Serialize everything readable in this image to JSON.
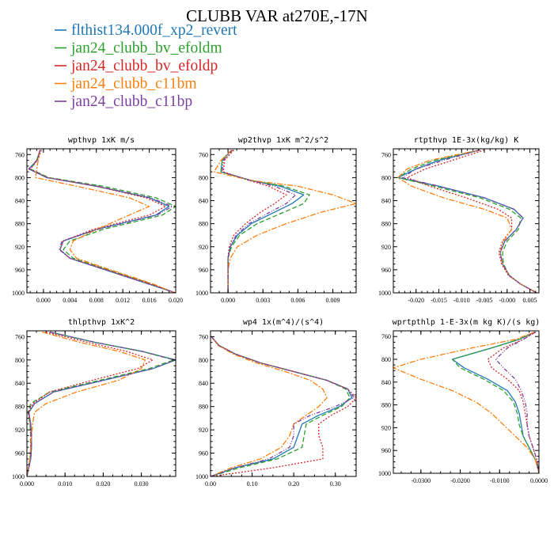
{
  "title": "CLUBB VAR at270E,-17N",
  "colors": {
    "flthist134.000f_xp2_revert": "#1f77b4",
    "jan24_clubb_bv_efoldm": "#2ca02c",
    "jan24_clubb_bv_efoldp": "#d62728",
    "jan24_clubb_c11bm": "#ff7f0e",
    "jan24_clubb_c11bp": "#7b3fa0"
  },
  "legend": [
    {
      "name": "flthist134.000f_xp2_revert",
      "color": "#1f77b4",
      "dash": "solid"
    },
    {
      "name": "jan24_clubb_bv_efoldm",
      "color": "#2ca02c",
      "dash": "dashed"
    },
    {
      "name": "jan24_clubb_bv_efoldp",
      "color": "#d62728",
      "dash": "dotted"
    },
    {
      "name": "jan24_clubb_c11bm",
      "color": "#ff7f0e",
      "dash": "dashdot"
    },
    {
      "name": "jan24_clubb_c11bp",
      "color": "#7b3fa0",
      "dash": "dashdot2"
    }
  ],
  "chart_data": [
    {
      "type": "line",
      "panel_title": "wpthvp 1xK m/s",
      "xlim": [
        -0.0025,
        0.02
      ],
      "ylim": [
        1000,
        750
      ],
      "xticks": [
        "0.000",
        "0.004",
        "0.008",
        "0.012",
        "0.016",
        "0.020"
      ],
      "xtick_values": [
        0,
        0.004,
        0.008,
        0.012,
        0.016,
        0.02
      ],
      "yticks": [
        760,
        800,
        840,
        880,
        920,
        960,
        1000
      ],
      "y": [
        752,
        770,
        785,
        800,
        815,
        835,
        850,
        865,
        890,
        910,
        925,
        940,
        955,
        970,
        985,
        1000
      ],
      "series": [
        {
          "name": "flthist134.000f_xp2_revert",
          "values": [
            -0.0005,
            -0.001,
            -0.0022,
            0.0005,
            0.008,
            0.016,
            0.019,
            0.017,
            0.008,
            0.003,
            0.0025,
            0.004,
            0.008,
            0.012,
            0.016,
            0.02
          ]
        },
        {
          "name": "jan24_clubb_bv_efoldm",
          "values": [
            -0.0005,
            -0.001,
            -0.002,
            0.0008,
            0.009,
            0.017,
            0.02,
            0.018,
            0.009,
            0.004,
            0.003,
            0.0045,
            0.0085,
            0.0125,
            0.0165,
            0.0198
          ]
        },
        {
          "name": "jan24_clubb_bv_efoldp",
          "values": [
            -0.0003,
            -0.0009,
            -0.002,
            0.0006,
            0.008,
            0.0155,
            0.0185,
            0.016,
            0.0075,
            0.003,
            0.0025,
            0.004,
            0.0082,
            0.0122,
            0.0162,
            0.02
          ]
        },
        {
          "name": "jan24_clubb_c11bm",
          "values": [
            -0.0005,
            -0.0008,
            -0.001,
            -0.0012,
            0.005,
            0.013,
            0.016,
            0.013,
            0.008,
            0.0045,
            0.004,
            0.005,
            0.0088,
            0.0128,
            0.0167,
            0.0198
          ]
        },
        {
          "name": "jan24_clubb_c11bp",
          "values": [
            -0.0005,
            -0.001,
            -0.0022,
            0.0005,
            0.0082,
            0.0162,
            0.0195,
            0.0172,
            0.0082,
            0.0028,
            0.0024,
            0.004,
            0.008,
            0.012,
            0.016,
            0.02
          ]
        }
      ]
    },
    {
      "type": "line",
      "panel_title": "wp2thvp 1xK m^2/s^2",
      "xlim": [
        -0.0015,
        0.011
      ],
      "ylim": [
        1000,
        750
      ],
      "xticks": [
        "0.000",
        "0.003",
        "0.006",
        "0.009"
      ],
      "xtick_values": [
        0,
        0.003,
        0.006,
        0.009
      ],
      "yticks": [
        760,
        800,
        840,
        880,
        920,
        960,
        1000
      ],
      "y": [
        752,
        770,
        790,
        805,
        815,
        830,
        845,
        860,
        880,
        900,
        920,
        940,
        960,
        980,
        1000
      ],
      "series": [
        {
          "name": "flthist134.000f_xp2_revert",
          "values": [
            0.0003,
            -0.0005,
            -0.0006,
            0.002,
            0.0045,
            0.0065,
            0.0055,
            0.004,
            0.002,
            0.0008,
            0.0002,
            0,
            0,
            0,
            0
          ]
        },
        {
          "name": "jan24_clubb_bv_efoldm",
          "values": [
            0.0003,
            -0.0005,
            -0.0006,
            0.002,
            0.0048,
            0.007,
            0.0065,
            0.0048,
            0.0025,
            0.001,
            0.0003,
            0,
            0,
            0,
            0
          ]
        },
        {
          "name": "jan24_clubb_bv_efoldp",
          "values": [
            0.0005,
            -0.0003,
            -0.0004,
            0.0018,
            0.0035,
            0.005,
            0.004,
            0.0028,
            0.0015,
            0.0005,
            0.0001,
            0,
            0,
            0,
            0
          ]
        },
        {
          "name": "jan24_clubb_c11bm",
          "values": [
            0.0003,
            -0.0006,
            -0.0012,
            0.002,
            0.006,
            0.009,
            0.011,
            0.008,
            0.005,
            0.0025,
            0.0008,
            0.0002,
            0,
            0,
            0
          ]
        },
        {
          "name": "jan24_clubb_c11bp",
          "values": [
            0.0004,
            -0.0004,
            -0.0005,
            0.0019,
            0.004,
            0.0058,
            0.005,
            0.0036,
            0.0018,
            0.0007,
            0.0002,
            0,
            0,
            0,
            0
          ]
        }
      ]
    },
    {
      "type": "line",
      "panel_title": "rtpthvp 1E-3x(kg/kg) K",
      "xlim": [
        -0.025,
        0.007
      ],
      "ylim": [
        1000,
        750
      ],
      "xticks": [
        "-0.020",
        "-0.015",
        "-0.010",
        "-0.005",
        "-0.000",
        "0.005"
      ],
      "xtick_values": [
        -0.02,
        -0.015,
        -0.01,
        -0.005,
        0,
        0.005
      ],
      "yticks": [
        760,
        800,
        840,
        880,
        920,
        960,
        1000
      ],
      "y": [
        752,
        770,
        785,
        800,
        815,
        835,
        855,
        870,
        890,
        910,
        930,
        950,
        970,
        985,
        1000
      ],
      "series": [
        {
          "name": "flthist134.000f_xp2_revert",
          "values": [
            -0.006,
            -0.015,
            -0.02,
            -0.024,
            -0.015,
            -0.005,
            0.0015,
            0.0035,
            0.002,
            -0.0005,
            -0.0015,
            -0.001,
            0.0005,
            0.003,
            0.0065
          ]
        },
        {
          "name": "jan24_clubb_bv_efoldm",
          "values": [
            -0.006,
            -0.016,
            -0.021,
            -0.024,
            -0.016,
            -0.006,
            0.0005,
            0.003,
            0.0025,
            0,
            -0.001,
            -0.0008,
            0.0005,
            0.003,
            0.0065
          ]
        },
        {
          "name": "jan24_clubb_bv_efoldp",
          "values": [
            -0.005,
            -0.012,
            -0.018,
            -0.022,
            -0.017,
            -0.009,
            -0.002,
            0.001,
            0.001,
            -0.001,
            -0.0018,
            -0.0012,
            0.0003,
            0.003,
            0.0065
          ]
        },
        {
          "name": "jan24_clubb_c11bm",
          "values": [
            -0.006,
            -0.017,
            -0.022,
            -0.024,
            -0.021,
            -0.014,
            -0.005,
            0,
            0.001,
            -0.0008,
            -0.0015,
            -0.001,
            0.0005,
            0.003,
            0.0065
          ]
        },
        {
          "name": "jan24_clubb_c11bp",
          "values": [
            -0.006,
            -0.014,
            -0.02,
            -0.023,
            -0.015,
            -0.005,
            0.0015,
            0.0035,
            0.002,
            -0.0005,
            -0.0015,
            -0.001,
            0.0005,
            0.003,
            0.0065
          ]
        }
      ]
    },
    {
      "type": "line",
      "panel_title": "thlpthvp 1xK^2",
      "xlim": [
        0,
        0.039
      ],
      "ylim": [
        1000,
        750
      ],
      "xticks": [
        "0.000",
        "0.010",
        "0.020",
        "0.030"
      ],
      "xtick_values": [
        0,
        0.01,
        0.02,
        0.03
      ],
      "yticks": [
        760,
        800,
        840,
        880,
        920,
        960,
        1000
      ],
      "y": [
        752,
        770,
        785,
        800,
        815,
        835,
        855,
        875,
        890,
        910,
        930,
        950,
        970,
        985,
        1000
      ],
      "series": [
        {
          "name": "flthist134.000f_xp2_revert",
          "values": [
            0.006,
            0.018,
            0.03,
            0.039,
            0.033,
            0.02,
            0.007,
            0.002,
            0.0005,
            0.001,
            0.0012,
            0.0012,
            0.001,
            0.0005,
            0
          ]
        },
        {
          "name": "jan24_clubb_bv_efoldm",
          "values": [
            0.006,
            0.018,
            0.03,
            0.0385,
            0.032,
            0.019,
            0.006,
            0.001,
            0.0003,
            0.0008,
            0.001,
            0.001,
            0.0008,
            0.0004,
            0
          ]
        },
        {
          "name": "jan24_clubb_bv_efoldp",
          "values": [
            0.005,
            0.016,
            0.026,
            0.033,
            0.029,
            0.017,
            0.006,
            0.0015,
            0.0004,
            0.0009,
            0.001,
            0.001,
            0.0008,
            0.0004,
            0
          ]
        },
        {
          "name": "jan24_clubb_c11bm",
          "values": [
            0.004,
            0.014,
            0.024,
            0.031,
            0.03,
            0.024,
            0.013,
            0.005,
            0.002,
            0.0015,
            0.0012,
            0.001,
            0.0008,
            0.0004,
            0
          ]
        },
        {
          "name": "jan24_clubb_c11bp",
          "values": [
            0.006,
            0.018,
            0.03,
            0.039,
            0.033,
            0.02,
            0.007,
            0.002,
            0.0005,
            0.001,
            0.0012,
            0.0012,
            0.001,
            0.0005,
            0
          ]
        }
      ]
    },
    {
      "type": "line",
      "panel_title": "wp4 1x(m^4)/(s^4)",
      "xlim": [
        0,
        0.35
      ],
      "ylim": [
        1000,
        750
      ],
      "xticks": [
        "0.00",
        "0.10",
        "0.20",
        "0.30"
      ],
      "xtick_values": [
        0,
        0.1,
        0.2,
        0.3
      ],
      "yticks": [
        760,
        800,
        840,
        880,
        920,
        960,
        1000
      ],
      "y": [
        760,
        775,
        790,
        805,
        820,
        835,
        850,
        865,
        880,
        895,
        910,
        930,
        950,
        970,
        985,
        1000
      ],
      "series": [
        {
          "name": "flthist134.000f_xp2_revert",
          "values": [
            0.002,
            0.02,
            0.06,
            0.12,
            0.2,
            0.28,
            0.33,
            0.34,
            0.31,
            0.26,
            0.22,
            0.21,
            0.2,
            0.15,
            0.06,
            0
          ]
        },
        {
          "name": "jan24_clubb_bv_efoldm",
          "values": [
            0.002,
            0.02,
            0.06,
            0.12,
            0.2,
            0.28,
            0.325,
            0.335,
            0.315,
            0.27,
            0.23,
            0.225,
            0.22,
            0.16,
            0.07,
            0
          ]
        },
        {
          "name": "jan24_clubb_bv_efoldp",
          "values": [
            0.002,
            0.02,
            0.06,
            0.12,
            0.2,
            0.28,
            0.33,
            0.35,
            0.33,
            0.29,
            0.26,
            0.26,
            0.27,
            0.27,
            0.15,
            0.002
          ]
        },
        {
          "name": "jan24_clubb_c11bm",
          "values": [
            0.002,
            0.018,
            0.055,
            0.11,
            0.18,
            0.24,
            0.27,
            0.28,
            0.26,
            0.23,
            0.2,
            0.19,
            0.17,
            0.12,
            0.05,
            0
          ]
        },
        {
          "name": "jan24_clubb_c11bp",
          "values": [
            0.002,
            0.02,
            0.06,
            0.12,
            0.2,
            0.28,
            0.33,
            0.345,
            0.3,
            0.24,
            0.2,
            0.2,
            0.19,
            0.14,
            0.06,
            0
          ]
        }
      ]
    },
    {
      "type": "line",
      "panel_title": "wprtpthlp 1-E-3x(m kg K)/(s kg)",
      "xlim": [
        -0.037,
        0.0
      ],
      "ylim": [
        1000,
        750
      ],
      "xticks": [
        "-0.0300",
        "-0.0200",
        "-0.0100",
        "0.0000"
      ],
      "xtick_values": [
        -0.03,
        -0.02,
        -0.01,
        0
      ],
      "yticks": [
        760,
        800,
        840,
        880,
        920,
        960,
        1000
      ],
      "y": [
        752,
        765,
        780,
        800,
        815,
        835,
        855,
        875,
        895,
        915,
        935,
        955,
        975,
        990,
        1000
      ],
      "series": [
        {
          "name": "flthist134.000f_xp2_revert",
          "values": [
            -0.001,
            -0.005,
            -0.012,
            -0.022,
            -0.019,
            -0.013,
            -0.008,
            -0.006,
            -0.005,
            -0.0045,
            -0.004,
            -0.0025,
            -0.001,
            -0.0003,
            0
          ]
        },
        {
          "name": "jan24_clubb_bv_efoldm",
          "values": [
            -0.001,
            -0.005,
            -0.012,
            -0.022,
            -0.02,
            -0.014,
            -0.009,
            -0.0065,
            -0.0055,
            -0.005,
            -0.004,
            -0.0025,
            -0.001,
            -0.0003,
            0
          ]
        },
        {
          "name": "jan24_clubb_bv_efoldp",
          "values": [
            -0.0008,
            -0.004,
            -0.009,
            -0.013,
            -0.012,
            -0.008,
            -0.005,
            -0.004,
            -0.0035,
            -0.003,
            -0.0025,
            -0.0015,
            -0.0006,
            -0.0002,
            0
          ]
        },
        {
          "name": "jan24_clubb_c11bm",
          "values": [
            -0.001,
            -0.006,
            -0.017,
            -0.03,
            -0.037,
            -0.03,
            -0.022,
            -0.016,
            -0.012,
            -0.009,
            -0.006,
            -0.003,
            -0.001,
            -0.0003,
            0
          ]
        },
        {
          "name": "jan24_clubb_c11bp",
          "values": [
            -0.0008,
            -0.004,
            -0.008,
            -0.011,
            -0.009,
            -0.006,
            -0.0045,
            -0.0035,
            -0.003,
            -0.003,
            -0.0025,
            -0.0015,
            -0.0006,
            -0.0002,
            0
          ]
        }
      ]
    }
  ]
}
